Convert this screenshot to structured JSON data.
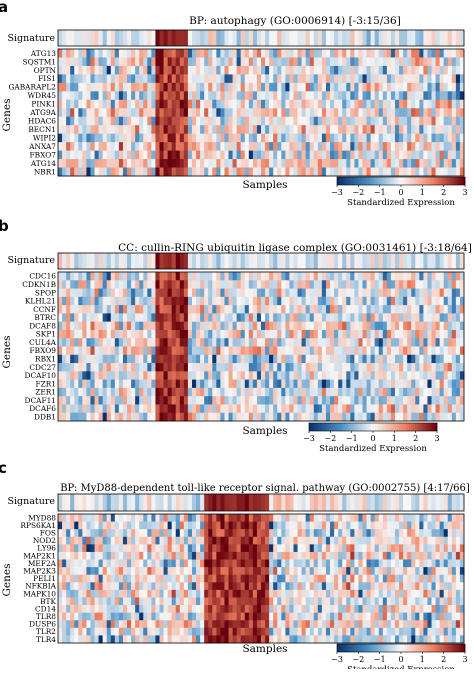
{
  "colorscale": {
    "low": "#08306b",
    "mid_low": "#4a8fc4",
    "mid": "#f7f7f7",
    "mid_high": "#f08060",
    "high": "#67000d",
    "vmin": -3,
    "vmax": 3
  },
  "chart_data": [
    {
      "type": "heatmap",
      "panel_label": "a",
      "title": "BP: autophagy (GO:0006914) [-3:15/36]",
      "signature_label": "Signature",
      "ylabel": "Genes",
      "xlabel": "Samples",
      "colorbar_label": "Standardized Expression",
      "colorbar_ticks": [
        "−3",
        "−2",
        "−1",
        "0",
        "1",
        "2",
        "3"
      ],
      "genes": [
        "ATG13",
        "SQSTM1",
        "OPTN",
        "FIS1",
        "GABARAPL2",
        "WDR45",
        "PINK1",
        "ATG9A",
        "HDAC6",
        "BECN1",
        "WIPI2",
        "ANXA7",
        "FBXO7",
        "ATG14",
        "NBR1"
      ],
      "high_columns_fraction": [
        0.24,
        0.32
      ]
    },
    {
      "type": "heatmap",
      "panel_label": "b",
      "title": "CC: cullin-RING ubiquitin ligase complex (GO:0031461) [-3:18/64]",
      "signature_label": "Signature",
      "ylabel": "Genes",
      "xlabel": "Samples",
      "colorbar_label": "Standardized Expression",
      "colorbar_ticks": [
        "−3",
        "−2",
        "−1",
        "0",
        "1",
        "2",
        "3"
      ],
      "genes": [
        "CDC16",
        "CDKN1B",
        "SPOP",
        "KLHL21",
        "CCNF",
        "BTRC",
        "DCAF8",
        "SKP1",
        "CUL4A",
        "FBXO9",
        "RBX1",
        "CDC27",
        "DCAF10",
        "FZR1",
        "ZER1",
        "DCAF11",
        "DCAF6",
        "DDB1"
      ],
      "high_columns_fraction": [
        0.24,
        0.32
      ]
    },
    {
      "type": "heatmap",
      "panel_label": "c",
      "title": "BP: MyD88-dependent toll-like receptor signal. pathway (GO:0002755) [4:17/66]",
      "signature_label": "Signature",
      "ylabel": "Genes",
      "xlabel": "Samples",
      "colorbar_label": "Standardized Expression",
      "colorbar_ticks": [
        "−3",
        "−2",
        "−1",
        "0",
        "1",
        "2",
        "3"
      ],
      "genes": [
        "MYD88",
        "RPS6KA1",
        "FOS",
        "NOD2",
        "LY96",
        "MAP2K1",
        "MEF2A",
        "MAP2K3",
        "PELI1",
        "NFKBIA",
        "MAPK10",
        "BTK",
        "CD14",
        "TLR8",
        "DUSP6",
        "TLR2",
        "TLR4"
      ],
      "high_columns_fraction": [
        0.36,
        0.52
      ]
    }
  ]
}
